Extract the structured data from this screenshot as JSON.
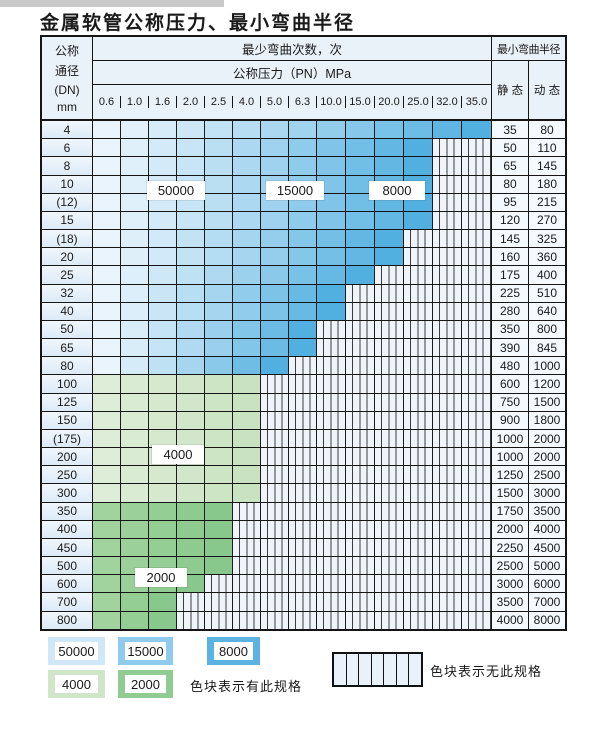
{
  "page": {
    "title": "金属软管公称压力、最小弯曲半径"
  },
  "table": {
    "corner": {
      "line1": "公称",
      "line2": "通径",
      "line3": "(DN)",
      "line4": "mm"
    },
    "top_header": "最少弯曲次数，次",
    "pressure_header": "公称压力（PN）MPa",
    "radius_header": "最小弯曲半径",
    "static_header": "静 态",
    "dynamic_header": "动 态"
  },
  "annotations": {
    "label_50000": "50000",
    "label_15000": "15000",
    "label_8000": "8000",
    "label_4000": "4000",
    "label_2000": "2000"
  },
  "legend": {
    "has_spec_text": "色块表示有此规格",
    "no_spec_text": "色块表示无此规格",
    "swatches": [
      {
        "label": "50000",
        "color": "#cfe7f7"
      },
      {
        "label": "15000",
        "color": "#8ecbed"
      },
      {
        "label": "8000",
        "color": "#5cb3e1"
      },
      {
        "label": "4000",
        "color": "#cfe6c9"
      },
      {
        "label": "2000",
        "color": "#90cb92"
      }
    ]
  },
  "colors": {
    "blue_light": "#e9f4fc",
    "blue_dark": "#52b0e0",
    "green_light_a": "#deedd7",
    "green_light_b": "#c9e2c1",
    "green_dark_a": "#a1d39e",
    "green_dark_b": "#89c88c",
    "hatch_fill": "#eef4fa",
    "border": "#151515",
    "header_bg": "#e9f2f9"
  },
  "chart_data": {
    "type": "table",
    "title": "金属软管公称压力、最小弯曲半径",
    "pressure_columns_MPa": [
      "0.6",
      "1.0",
      "1.6",
      "2.0",
      "2.5",
      "4.0",
      "5.0",
      "6.3",
      "10.0",
      "15.0",
      "20.0",
      "25.0",
      "32.0",
      "35.0"
    ],
    "legend_cycles_to_color": {
      "50000": "pale-blue",
      "15000": "mid-blue",
      "8000": "dark-blue",
      "4000": "pale-green",
      "2000": "mid-green"
    },
    "hatch_meaning": "无此规格 (no such specification)",
    "rows": [
      {
        "dn": "4",
        "colored_cols": 14,
        "colored_through_MPa": "35.0",
        "palette": "blue",
        "static": "35",
        "dynamic": "80"
      },
      {
        "dn": "6",
        "colored_cols": 12,
        "colored_through_MPa": "25.0",
        "palette": "blue",
        "static": "50",
        "dynamic": "110"
      },
      {
        "dn": "8",
        "colored_cols": 12,
        "colored_through_MPa": "25.0",
        "palette": "blue",
        "static": "65",
        "dynamic": "145"
      },
      {
        "dn": "10",
        "colored_cols": 12,
        "colored_through_MPa": "25.0",
        "palette": "blue",
        "static": "80",
        "dynamic": "180"
      },
      {
        "dn": "(12)",
        "colored_cols": 12,
        "colored_through_MPa": "25.0",
        "palette": "blue",
        "static": "95",
        "dynamic": "215"
      },
      {
        "dn": "15",
        "colored_cols": 12,
        "colored_through_MPa": "25.0",
        "palette": "blue",
        "static": "120",
        "dynamic": "270"
      },
      {
        "dn": "(18)",
        "colored_cols": 11,
        "colored_through_MPa": "20.0",
        "palette": "blue",
        "static": "145",
        "dynamic": "325"
      },
      {
        "dn": "20",
        "colored_cols": 11,
        "colored_through_MPa": "20.0",
        "palette": "blue",
        "static": "160",
        "dynamic": "360"
      },
      {
        "dn": "25",
        "colored_cols": 10,
        "colored_through_MPa": "15.0",
        "palette": "blue",
        "static": "175",
        "dynamic": "400"
      },
      {
        "dn": "32",
        "colored_cols": 9,
        "colored_through_MPa": "10.0",
        "palette": "blue",
        "static": "225",
        "dynamic": "510"
      },
      {
        "dn": "40",
        "colored_cols": 9,
        "colored_through_MPa": "10.0",
        "palette": "blue",
        "static": "280",
        "dynamic": "640"
      },
      {
        "dn": "50",
        "colored_cols": 8,
        "colored_through_MPa": "6.3",
        "palette": "blue",
        "static": "350",
        "dynamic": "800"
      },
      {
        "dn": "65",
        "colored_cols": 8,
        "colored_through_MPa": "6.3",
        "palette": "blue",
        "static": "390",
        "dynamic": "845"
      },
      {
        "dn": "80",
        "colored_cols": 7,
        "colored_through_MPa": "5.0",
        "palette": "blue",
        "static": "480",
        "dynamic": "1000"
      },
      {
        "dn": "100",
        "colored_cols": 6,
        "colored_through_MPa": "4.0",
        "palette": "green_light",
        "static": "600",
        "dynamic": "1200"
      },
      {
        "dn": "125",
        "colored_cols": 6,
        "colored_through_MPa": "4.0",
        "palette": "green_light",
        "static": "750",
        "dynamic": "1500"
      },
      {
        "dn": "150",
        "colored_cols": 6,
        "colored_through_MPa": "4.0",
        "palette": "green_light",
        "static": "900",
        "dynamic": "1800"
      },
      {
        "dn": "(175)",
        "colored_cols": 6,
        "colored_through_MPa": "4.0",
        "palette": "green_light",
        "static": "1000",
        "dynamic": "2000"
      },
      {
        "dn": "200",
        "colored_cols": 6,
        "colored_through_MPa": "4.0",
        "palette": "green_light",
        "static": "1000",
        "dynamic": "2000"
      },
      {
        "dn": "250",
        "colored_cols": 6,
        "colored_through_MPa": "4.0",
        "palette": "green_light",
        "static": "1250",
        "dynamic": "2500"
      },
      {
        "dn": "300",
        "colored_cols": 6,
        "colored_through_MPa": "4.0",
        "palette": "green_light",
        "static": "1500",
        "dynamic": "3000"
      },
      {
        "dn": "350",
        "colored_cols": 5,
        "colored_through_MPa": "2.5",
        "palette": "green_dark",
        "static": "1750",
        "dynamic": "3500"
      },
      {
        "dn": "400",
        "colored_cols": 5,
        "colored_through_MPa": "2.5",
        "palette": "green_dark",
        "static": "2000",
        "dynamic": "4000"
      },
      {
        "dn": "450",
        "colored_cols": 5,
        "colored_through_MPa": "2.5",
        "palette": "green_dark",
        "static": "2250",
        "dynamic": "4500"
      },
      {
        "dn": "500",
        "colored_cols": 5,
        "colored_through_MPa": "2.5",
        "palette": "green_dark",
        "static": "2500",
        "dynamic": "5000"
      },
      {
        "dn": "600",
        "colored_cols": 4,
        "colored_through_MPa": "2.0",
        "palette": "green_dark",
        "static": "3000",
        "dynamic": "6000"
      },
      {
        "dn": "700",
        "colored_cols": 3,
        "colored_through_MPa": "1.6",
        "palette": "green_dark",
        "static": "3500",
        "dynamic": "7000"
      },
      {
        "dn": "800",
        "colored_cols": 3,
        "colored_through_MPa": "1.6",
        "palette": "green_dark",
        "static": "4000",
        "dynamic": "8000"
      }
    ]
  }
}
